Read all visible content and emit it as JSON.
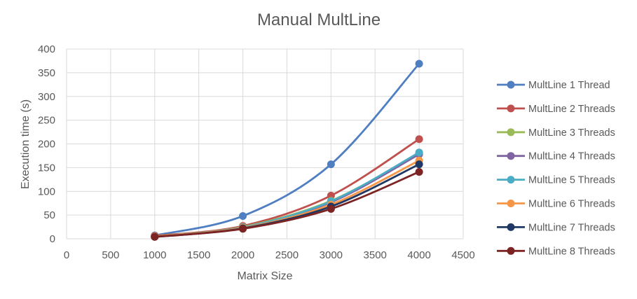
{
  "chart_data": {
    "type": "scatter",
    "title": "Manual MultLine",
    "xlabel": "Matrix Size",
    "ylabel": "Execution time (s)",
    "xlim": [
      0,
      4500
    ],
    "ylim": [
      0,
      400
    ],
    "xticks": [
      0,
      500,
      1000,
      1500,
      2000,
      2500,
      3000,
      3500,
      4000,
      4500
    ],
    "yticks": [
      0,
      50,
      100,
      150,
      200,
      250,
      300,
      350,
      400
    ],
    "grid": true,
    "smooth_lines": true,
    "legend_position": "right",
    "x": [
      1000,
      2000,
      3000,
      4000
    ],
    "series": [
      {
        "name": "MultLine 1 Thread",
        "color": "#4f7ec1",
        "values": [
          7,
          48,
          157,
          369
        ]
      },
      {
        "name": "MultLine 2 Threads",
        "color": "#c0504d",
        "values": [
          6,
          27,
          91,
          210
        ]
      },
      {
        "name": "MultLine 3 Threads",
        "color": "#9bbb59",
        "values": [
          5,
          25,
          80,
          180
        ]
      },
      {
        "name": "MultLine 4 Threads",
        "color": "#8064a2",
        "values": [
          5,
          24,
          77,
          178
        ]
      },
      {
        "name": "MultLine 5 Threads",
        "color": "#4bacc6",
        "values": [
          5,
          24,
          79,
          182
        ]
      },
      {
        "name": "MultLine 6 Threads",
        "color": "#f79646",
        "values": [
          5,
          23,
          72,
          165
        ]
      },
      {
        "name": "MultLine 7 Threads",
        "color": "#1f3864",
        "values": [
          4,
          22,
          68,
          157
        ]
      },
      {
        "name": "MultLine 8 Threads",
        "color": "#7b2423",
        "values": [
          4,
          21,
          63,
          141
        ]
      }
    ]
  }
}
